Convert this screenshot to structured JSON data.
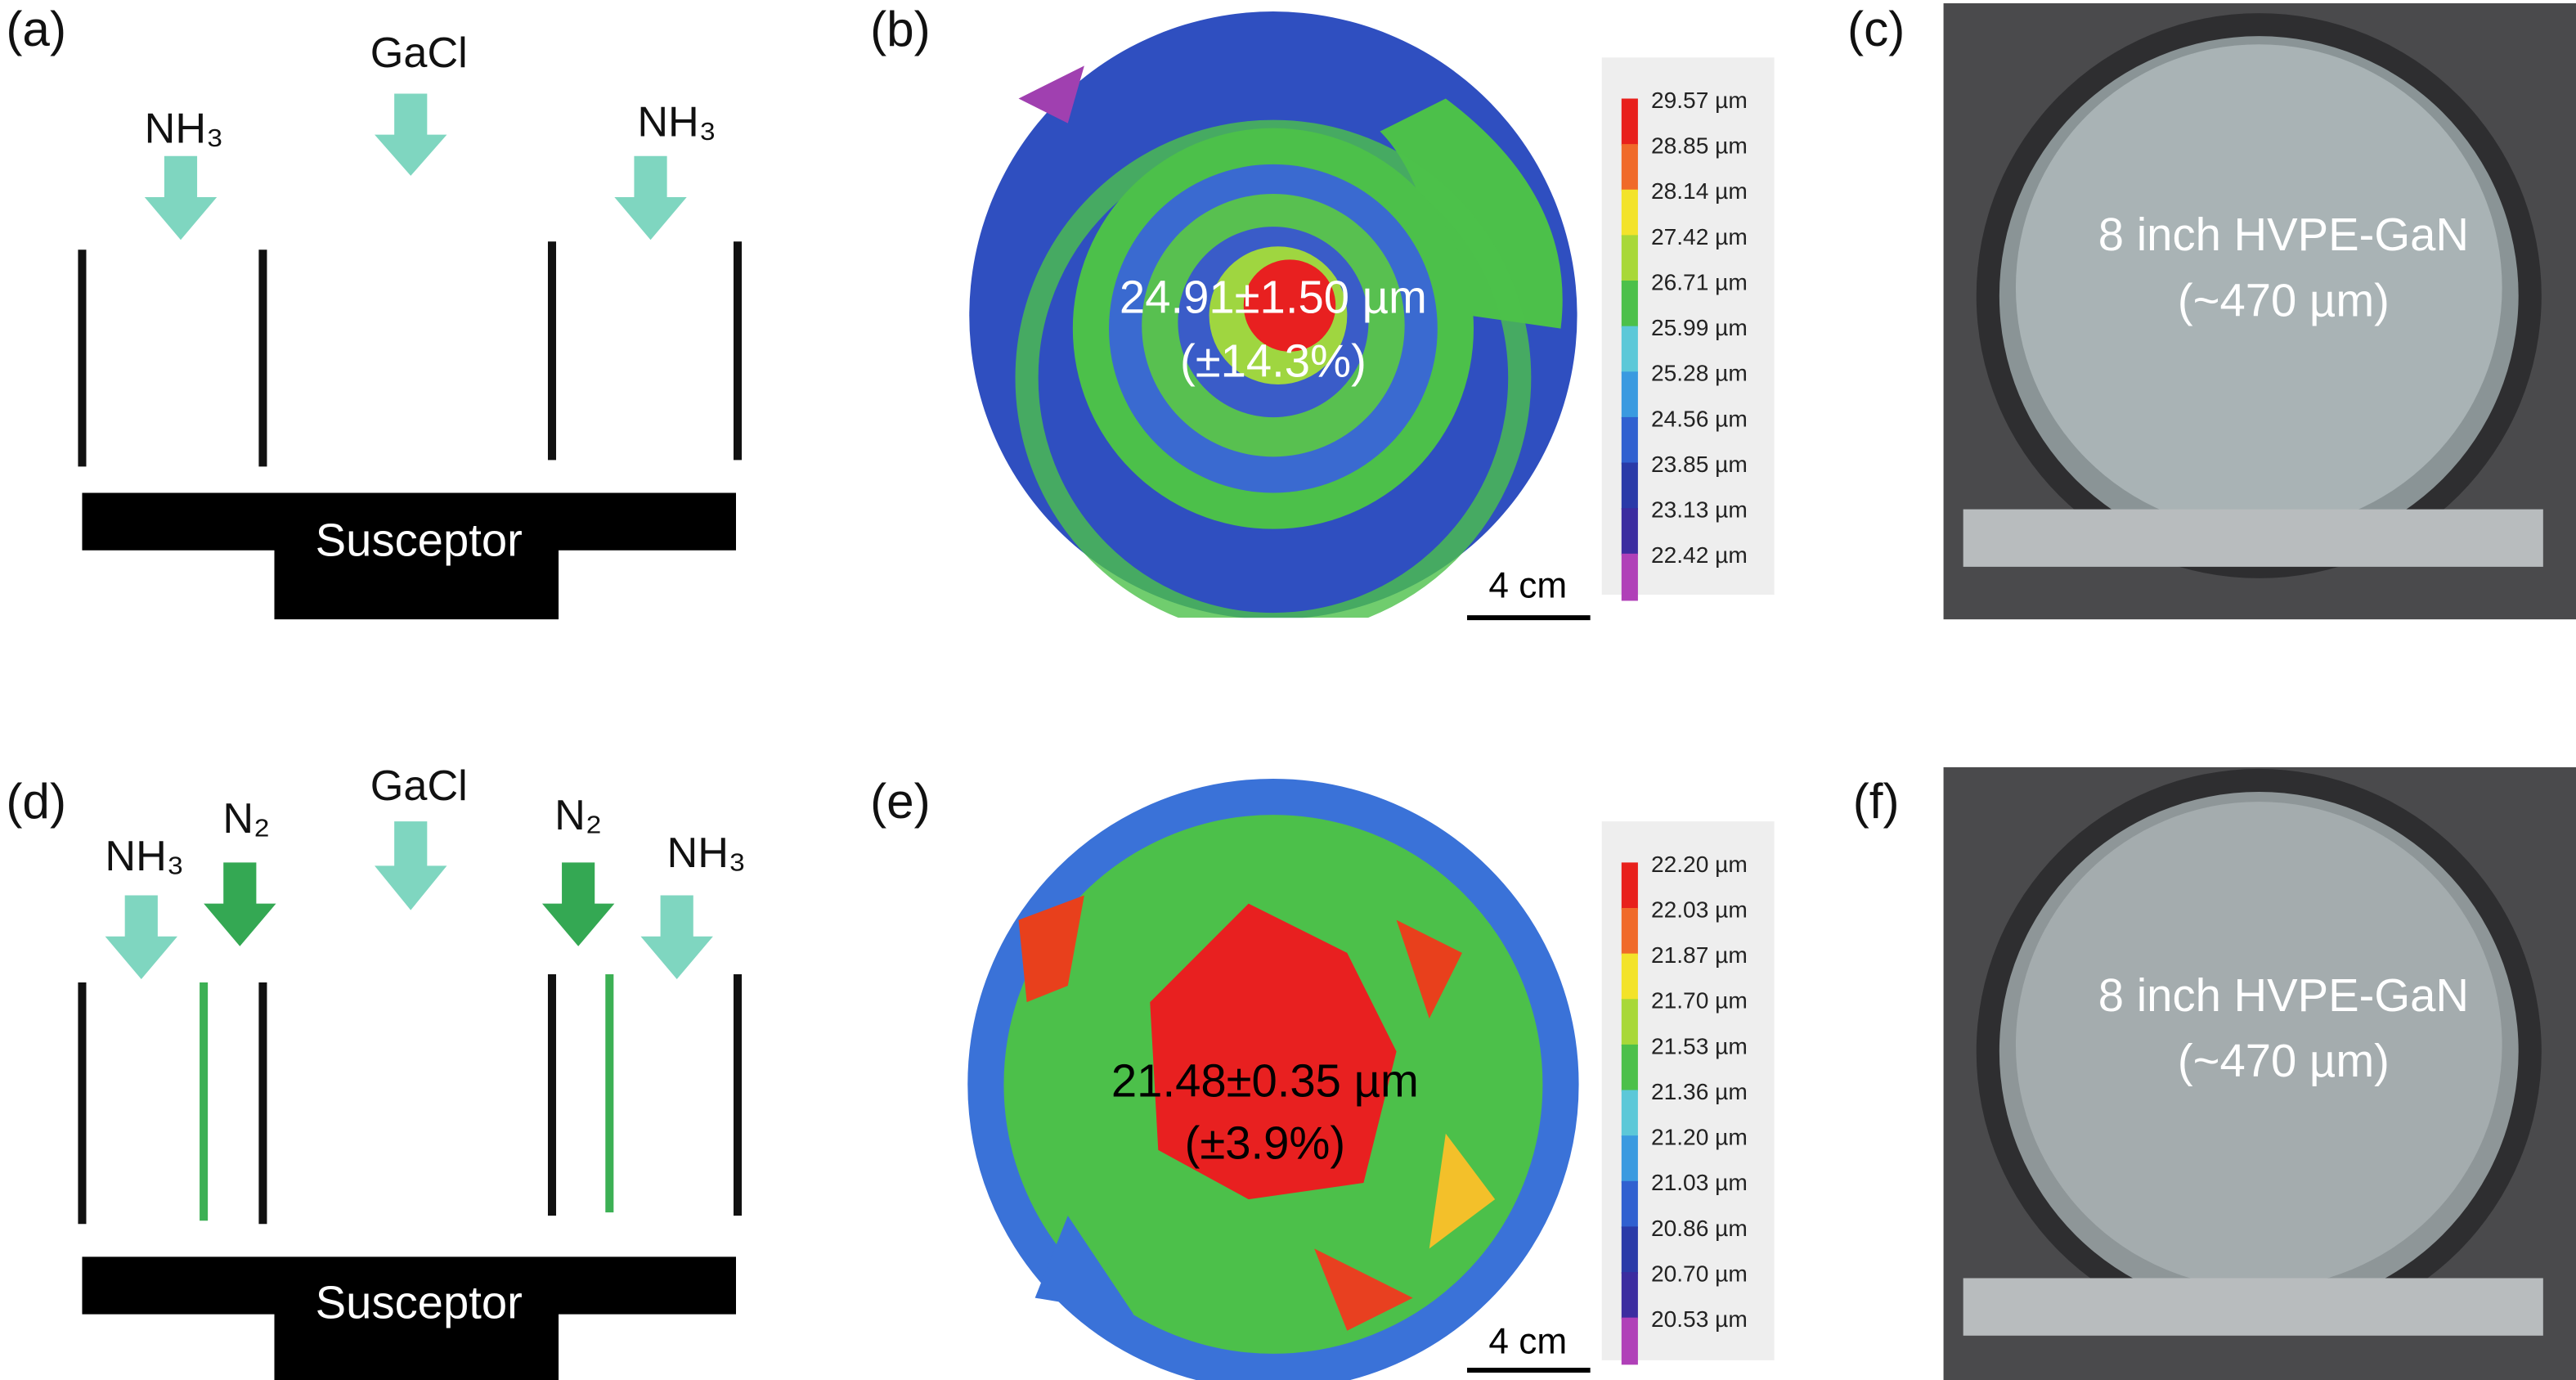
{
  "panels": [
    {
      "label": "(a)",
      "gases": [
        "NH₃",
        "GaCl",
        "NH₃"
      ],
      "susceptor": "Susceptor"
    },
    {
      "label": "(b)",
      "mean": "24.91±1.50 µm",
      "variation": "(±14.3%)",
      "colorbar": [
        "29.57 µm",
        "28.85 µm",
        "28.14 µm",
        "27.42 µm",
        "26.71 µm",
        "25.99 µm",
        "25.28 µm",
        "24.56 µm",
        "23.85 µm",
        "23.13 µm",
        "22.42 µm"
      ],
      "scale_bar": "4 cm"
    },
    {
      "label": "(c)",
      "caption": "8 inch HVPE-GaN",
      "thickness": "(~470 µm)"
    },
    {
      "label": "(d)",
      "gases": [
        "NH₃",
        "N₂",
        "GaCl",
        "N₂",
        "NH₃"
      ],
      "susceptor": "Susceptor"
    },
    {
      "label": "(e)",
      "mean": "21.48±0.35 µm",
      "variation": "(±3.9%)",
      "colorbar": [
        "22.20 µm",
        "22.03 µm",
        "21.87 µm",
        "21.70 µm",
        "21.53 µm",
        "21.36 µm",
        "21.20 µm",
        "21.03 µm",
        "20.86 µm",
        "20.70 µm",
        "20.53 µm"
      ],
      "scale_bar": "4 cm"
    },
    {
      "label": "(f)",
      "caption": "8 inch HVPE-GaN",
      "thickness": "(~470 µm)"
    }
  ]
}
